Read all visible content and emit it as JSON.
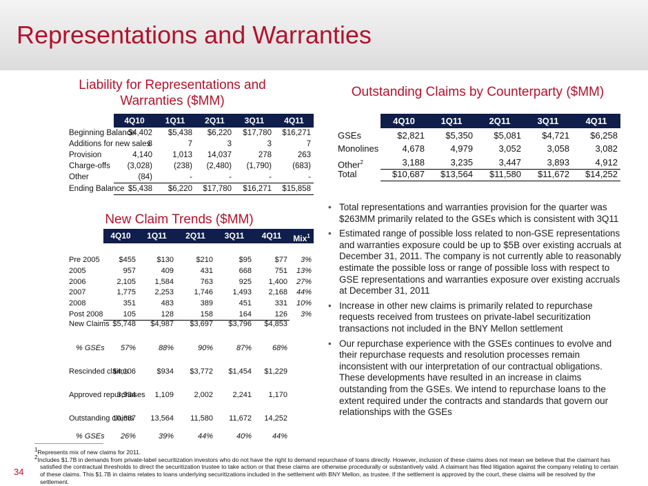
{
  "header": {
    "title": "Representations and Warranties"
  },
  "liability": {
    "title": "Liability for Representations and Warranties ($MM)",
    "columns": [
      "4Q10",
      "1Q11",
      "2Q11",
      "3Q11",
      "4Q11"
    ],
    "rows": [
      {
        "label": "Beginning Balance",
        "values": [
          "$4,402",
          "$5,438",
          "$6,220",
          "$17,780",
          "$16,271"
        ]
      },
      {
        "label": "Additions for new sales",
        "values": [
          "8",
          "7",
          "3",
          "3",
          "7"
        ]
      },
      {
        "label": "Provision",
        "values": [
          "4,140",
          "1,013",
          "14,037",
          "278",
          "263"
        ]
      },
      {
        "label": "Charge-offs",
        "values": [
          "(3,028)",
          "(238)",
          "(2,480)",
          "(1,790)",
          "(683)"
        ]
      },
      {
        "label": "Other",
        "values": [
          "(84)",
          "-",
          "-",
          "-",
          "-"
        ]
      },
      {
        "label": "Ending Balance",
        "values": [
          "$5,438",
          "$6,220",
          "$17,780",
          "$16,271",
          "$15,858"
        ]
      }
    ]
  },
  "counterparty": {
    "title": "Outstanding Claims by Counterparty ($MM)",
    "columns": [
      "4Q10",
      "1Q11",
      "2Q11",
      "3Q11",
      "4Q11"
    ],
    "rows": [
      {
        "label": "GSEs",
        "values": [
          "$2,821",
          "$5,350",
          "$5,081",
          "$4,721",
          "$6,258"
        ]
      },
      {
        "label": "Monolines",
        "values": [
          "4,678",
          "4,979",
          "3,052",
          "3,058",
          "3,082"
        ]
      },
      {
        "label": "Other",
        "note": "2",
        "values": [
          "3,188",
          "3,235",
          "3,447",
          "3,893",
          "4,912"
        ]
      },
      {
        "label": "Total",
        "values": [
          "$10,687",
          "$13,564",
          "$11,580",
          "$11,672",
          "$14,252"
        ]
      }
    ]
  },
  "new_claims": {
    "title": "New Claim Trends ($MM)",
    "columns": [
      "4Q10",
      "1Q11",
      "2Q11",
      "3Q11",
      "4Q11"
    ],
    "mix_column": "Mix",
    "mix_note": "1",
    "rows": [
      {
        "label": "Pre 2005",
        "values": [
          "$455",
          "$130",
          "$210",
          "$95",
          "$77"
        ],
        "mix": "3%"
      },
      {
        "label": "2005",
        "values": [
          "957",
          "409",
          "431",
          "668",
          "751"
        ],
        "mix": "13%"
      },
      {
        "label": "2006",
        "values": [
          "2,105",
          "1,584",
          "763",
          "925",
          "1,400"
        ],
        "mix": "27%"
      },
      {
        "label": "2007",
        "values": [
          "1,775",
          "2,253",
          "1,746",
          "1,493",
          "2,168"
        ],
        "mix": "44%"
      },
      {
        "label": "2008",
        "values": [
          "351",
          "483",
          "389",
          "451",
          "331"
        ],
        "mix": "10%"
      },
      {
        "label": "Post 2008",
        "values": [
          "105",
          "128",
          "158",
          "164",
          "126"
        ],
        "mix": "3%"
      },
      {
        "label": "New Claims",
        "values": [
          "$5,748",
          "$4,987",
          "$3,697",
          "$3,796",
          "$4,853"
        ]
      },
      {
        "label": "% GSEs",
        "values": [
          "57%",
          "88%",
          "90%",
          "87%",
          "68%"
        ]
      },
      {
        "label": "Rescinded claims",
        "values": [
          "$4,106",
          "$934",
          "$3,772",
          "$1,454",
          "$1,229"
        ]
      },
      {
        "label": "Approved repurchases",
        "values": [
          "3,934",
          "1,109",
          "2,002",
          "2,241",
          "1,170"
        ]
      },
      {
        "label": "Outstanding claims",
        "values": [
          "10,687",
          "13,564",
          "11,580",
          "11,672",
          "14,252"
        ]
      },
      {
        "label": "% GSEs",
        "values": [
          "26%",
          "39%",
          "44%",
          "40%",
          "44%"
        ]
      }
    ]
  },
  "bullets": [
    "Total representations and warranties provision for the quarter was $263MM primarily related to the GSEs which is consistent with 3Q11",
    "Estimated range of possible loss related to non-GSE representations and warranties exposure could be up to $5B over existing accruals at December 31, 2011. The company is not currently able to reasonably estimate the possible loss or range of possible loss with respect to GSE representations and warranties exposure over existing accruals at December 31, 2011",
    "Increase in other new claims is primarily related to repurchase requests received from trustees on private-label securitization transactions not included in the BNY Mellon settlement",
    "Our repurchase experience with the GSEs continues to evolve and their repurchase requests and resolution processes remain inconsistent with our interpretation of our contractual obligations. These developments have resulted in an increase in claims outstanding from the GSEs. We intend to repurchase loans to the extent required under the contracts and standards that govern our relationships with the GSEs"
  ],
  "footnotes": [
    {
      "mark": "1",
      "text": "Represents mix of new claims for 2011."
    },
    {
      "mark": "2",
      "text": "Includes $1.7B in demands from private-label securitization investors who do not have the right to demand repurchase of loans directly. However, inclusion of these claims does not mean we believe that the claimant has satisfied the contractual thresholds to direct the securitization trustee to take action or that these claims are otherwise procedurally or substantively valid. A claimant has filed litigation against the company relating to certain of these claims. This $1.7B in claims relates to loans underlying securitizations included in the settlement with BNY Mellon, as trustee. If the settlement is approved by the court, these claims will be resolved by the settlement."
    }
  ],
  "page_number": "34"
}
